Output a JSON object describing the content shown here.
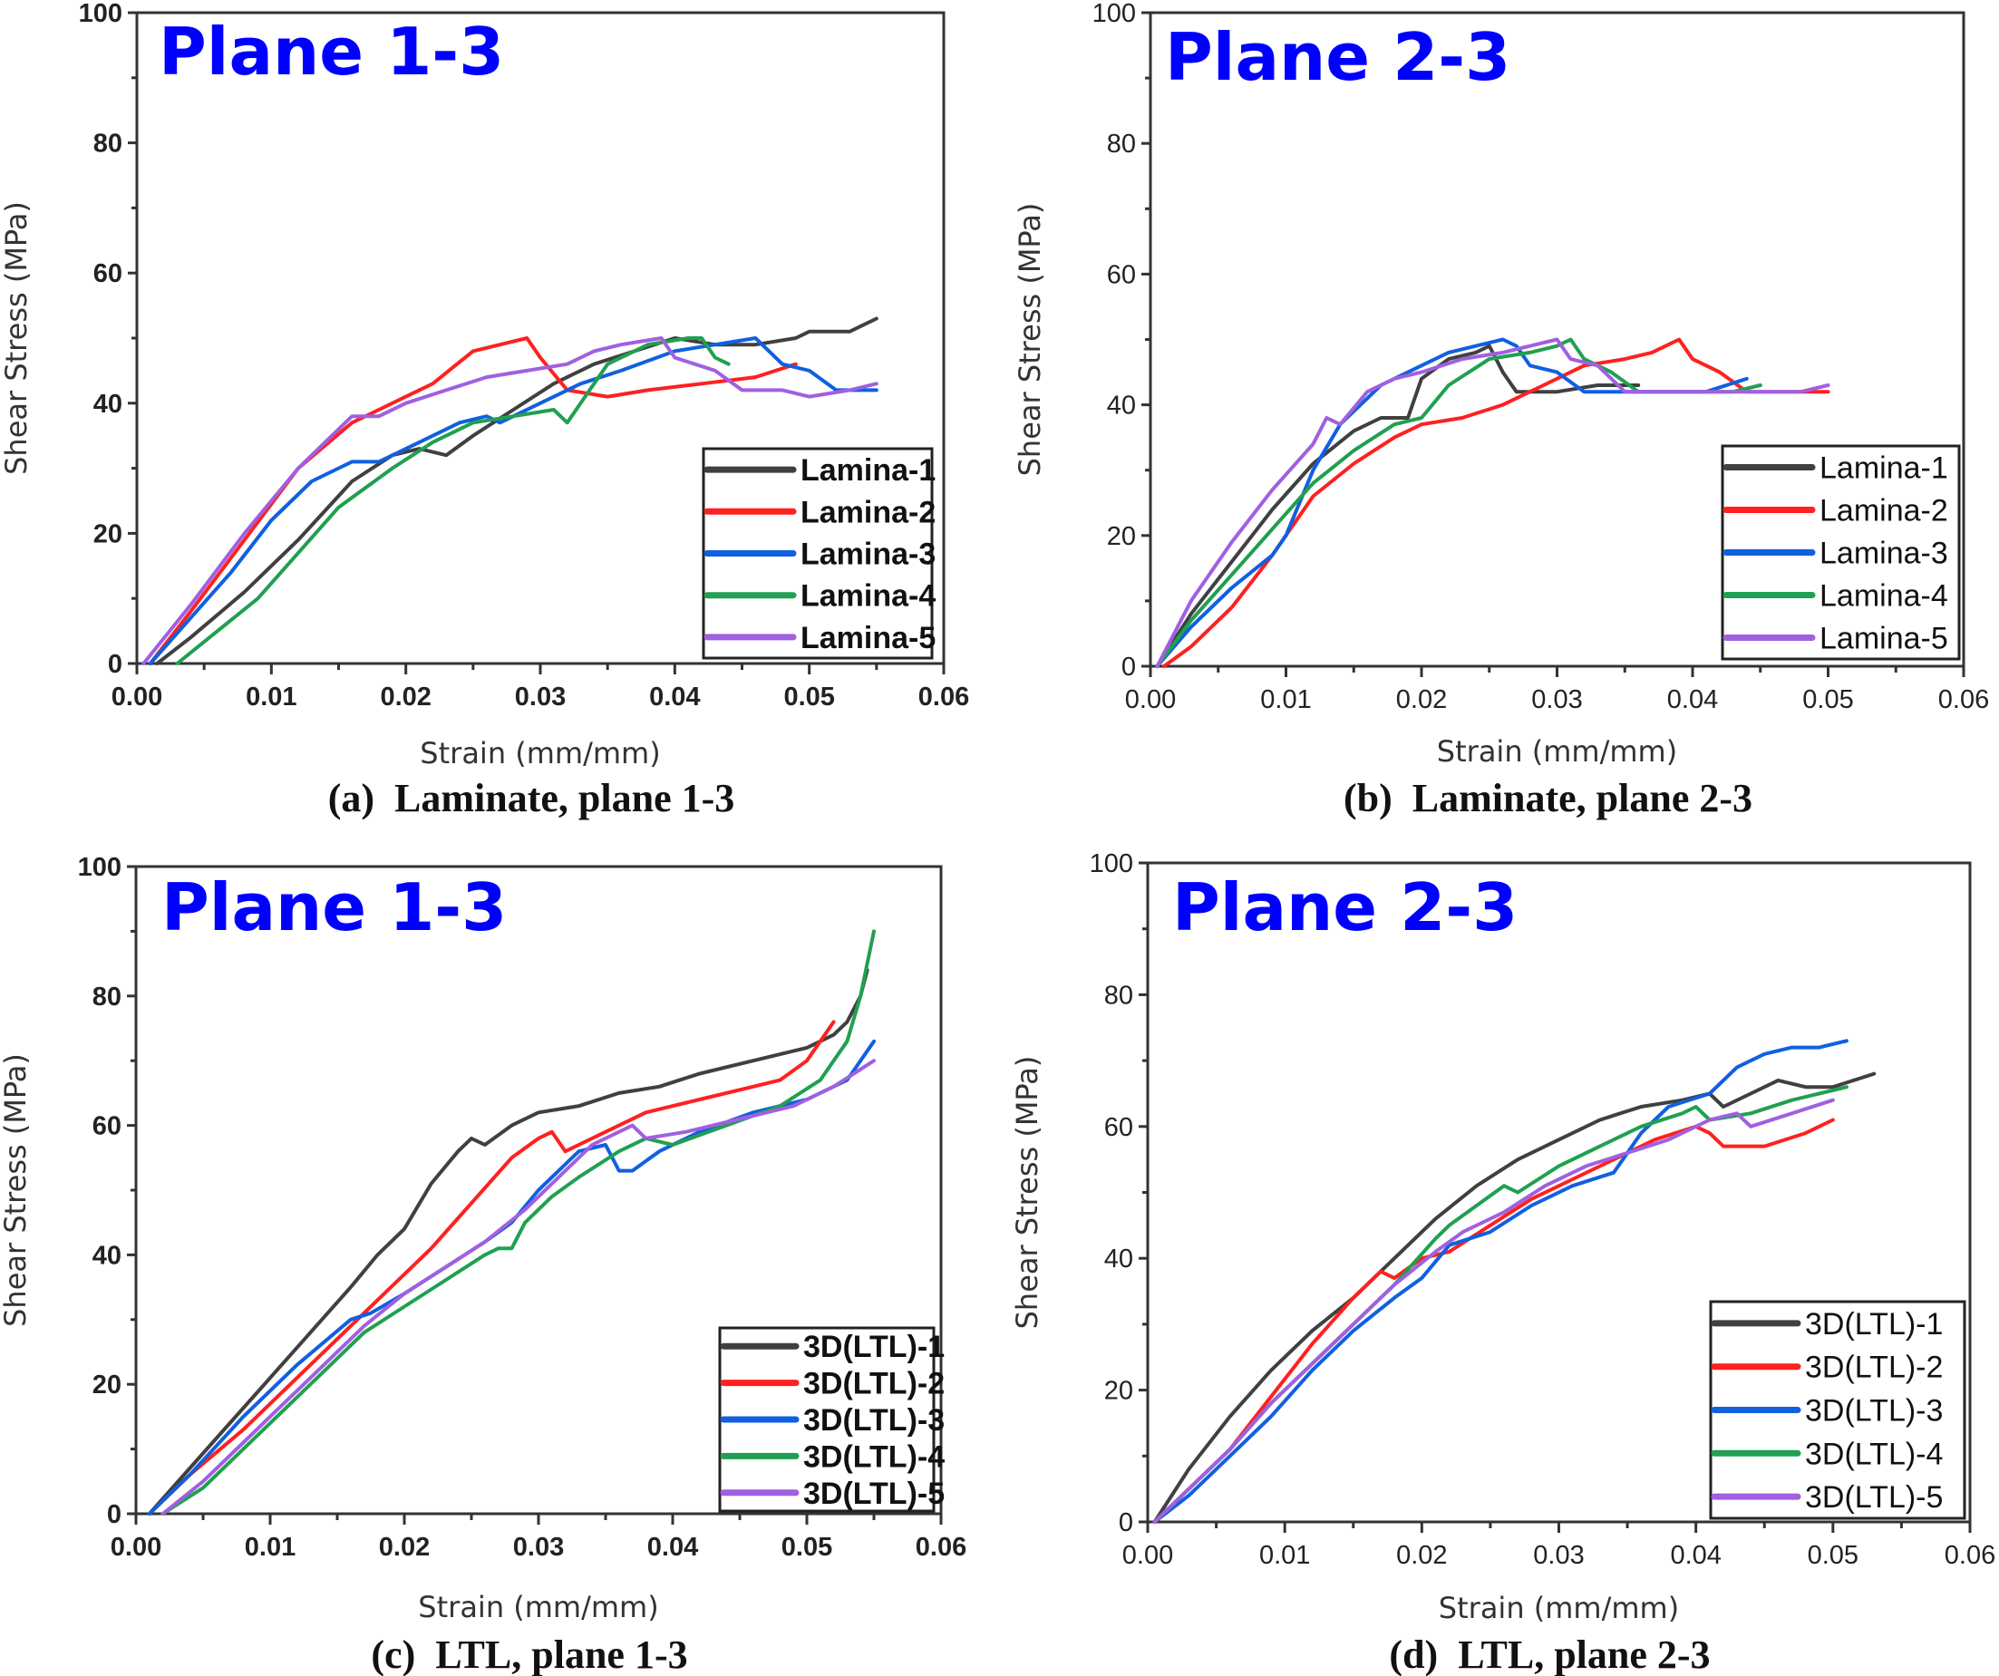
{
  "chart_data": [
    {
      "id": "a",
      "type": "line",
      "title": "Plane 1-3",
      "caption": "(a)  Laminate, plane 1-3",
      "xlabel": "Strain (mm/mm)",
      "ylabel": "Shear Stress (MPa)",
      "xlim": [
        0,
        0.06
      ],
      "ylim": [
        0,
        100
      ],
      "xticks": [
        "0.00",
        "0.01",
        "0.02",
        "0.03",
        "0.04",
        "0.05",
        "0.06"
      ],
      "yticks": [
        "0",
        "20",
        "40",
        "60",
        "80",
        "100"
      ],
      "grid": false,
      "legend_position": "bottom-right",
      "bold_labels": true,
      "series": [
        {
          "name": "Lamina-1",
          "color": "#404040",
          "x": [
            0.0015,
            0.004,
            0.008,
            0.012,
            0.016,
            0.019,
            0.021,
            0.023,
            0.025,
            0.028,
            0.031,
            0.034,
            0.037,
            0.04,
            0.043,
            0.046,
            0.049,
            0.05,
            0.052,
            0.053,
            0.055
          ],
          "y": [
            0,
            4,
            11,
            19,
            28,
            32,
            33,
            32,
            35,
            39,
            43,
            46,
            48,
            50,
            49,
            49,
            50,
            51,
            51,
            51,
            53
          ]
        },
        {
          "name": "Lamina-2",
          "color": "#ff2020",
          "x": [
            0.001,
            0.004,
            0.008,
            0.012,
            0.016,
            0.018,
            0.02,
            0.022,
            0.025,
            0.027,
            0.029,
            0.03,
            0.032,
            0.035,
            0.038,
            0.042,
            0.046,
            0.049
          ],
          "y": [
            0,
            8,
            19,
            30,
            37,
            39,
            41,
            43,
            48,
            49,
            50,
            47,
            42,
            41,
            42,
            43,
            44,
            46
          ]
        },
        {
          "name": "Lamina-3",
          "color": "#1060e0",
          "x": [
            0.001,
            0.004,
            0.007,
            0.01,
            0.013,
            0.016,
            0.018,
            0.021,
            0.024,
            0.026,
            0.027,
            0.03,
            0.033,
            0.036,
            0.04,
            0.043,
            0.046,
            0.048,
            0.05,
            0.052,
            0.055
          ],
          "y": [
            0,
            7,
            14,
            22,
            28,
            31,
            31,
            34,
            37,
            38,
            37,
            40,
            43,
            45,
            48,
            49,
            50,
            46,
            45,
            42,
            42
          ]
        },
        {
          "name": "Lamina-4",
          "color": "#20a050",
          "x": [
            0.003,
            0.006,
            0.009,
            0.012,
            0.015,
            0.019,
            0.022,
            0.025,
            0.028,
            0.031,
            0.032,
            0.033,
            0.035,
            0.038,
            0.041,
            0.042,
            0.043,
            0.044
          ],
          "y": [
            0,
            5,
            10,
            17,
            24,
            30,
            34,
            37,
            38,
            39,
            37,
            40,
            46,
            49,
            50,
            50,
            47,
            46
          ]
        },
        {
          "name": "Lamina-5",
          "color": "#a060e0",
          "x": [
            0.0005,
            0.004,
            0.008,
            0.012,
            0.016,
            0.018,
            0.02,
            0.023,
            0.026,
            0.029,
            0.032,
            0.034,
            0.036,
            0.039,
            0.04,
            0.043,
            0.045,
            0.048,
            0.05,
            0.053,
            0.055
          ],
          "y": [
            0,
            9,
            20,
            30,
            38,
            38,
            40,
            42,
            44,
            45,
            46,
            48,
            49,
            50,
            47,
            45,
            42,
            42,
            41,
            42,
            43
          ]
        }
      ]
    },
    {
      "id": "b",
      "type": "line",
      "title": "Plane 2-3",
      "caption": "(b)  Laminate, plane 2-3",
      "xlabel": "Strain (mm/mm)",
      "ylabel": "Shear Stress (MPa)",
      "xlim": [
        0,
        0.06
      ],
      "ylim": [
        0,
        100
      ],
      "xticks": [
        "0.00",
        "0.01",
        "0.02",
        "0.03",
        "0.04",
        "0.05",
        "0.06"
      ],
      "yticks": [
        "0",
        "20",
        "40",
        "60",
        "80",
        "100"
      ],
      "grid": false,
      "legend_position": "bottom-right",
      "bold_labels": false,
      "series": [
        {
          "name": "Lamina-1",
          "color": "#404040",
          "x": [
            0.0005,
            0.003,
            0.006,
            0.009,
            0.012,
            0.015,
            0.017,
            0.019,
            0.02,
            0.022,
            0.024,
            0.025,
            0.026,
            0.027,
            0.03,
            0.033,
            0.035,
            0.036
          ],
          "y": [
            0,
            8,
            16,
            24,
            31,
            36,
            38,
            38,
            44,
            47,
            48,
            49,
            45,
            42,
            42,
            43,
            43,
            43
          ]
        },
        {
          "name": "Lamina-2",
          "color": "#ff2020",
          "x": [
            0.001,
            0.003,
            0.006,
            0.009,
            0.012,
            0.015,
            0.018,
            0.02,
            0.023,
            0.026,
            0.029,
            0.032,
            0.035,
            0.037,
            0.039,
            0.04,
            0.042,
            0.044,
            0.046,
            0.048,
            0.05
          ],
          "y": [
            0,
            3,
            9,
            17,
            26,
            31,
            35,
            37,
            38,
            40,
            43,
            46,
            47,
            48,
            50,
            47,
            45,
            42,
            42,
            42,
            42
          ]
        },
        {
          "name": "Lamina-3",
          "color": "#1060e0",
          "x": [
            0.0005,
            0.003,
            0.006,
            0.009,
            0.01,
            0.012,
            0.014,
            0.017,
            0.02,
            0.022,
            0.024,
            0.026,
            0.027,
            0.028,
            0.03,
            0.032,
            0.034,
            0.038,
            0.041,
            0.044
          ],
          "y": [
            0,
            6,
            12,
            17,
            20,
            30,
            37,
            43,
            46,
            48,
            49,
            50,
            49,
            46,
            45,
            42,
            42,
            42,
            42,
            44
          ]
        },
        {
          "name": "Lamina-4",
          "color": "#20a050",
          "x": [
            0.0005,
            0.003,
            0.006,
            0.009,
            0.012,
            0.015,
            0.018,
            0.02,
            0.022,
            0.025,
            0.028,
            0.03,
            0.031,
            0.032,
            0.034,
            0.036,
            0.04,
            0.043,
            0.045
          ],
          "y": [
            0,
            7,
            14,
            21,
            28,
            33,
            37,
            38,
            43,
            47,
            48,
            49,
            50,
            47,
            45,
            42,
            42,
            42,
            43
          ]
        },
        {
          "name": "Lamina-5",
          "color": "#a060e0",
          "x": [
            0.0005,
            0.003,
            0.006,
            0.009,
            0.012,
            0.013,
            0.014,
            0.016,
            0.018,
            0.02,
            0.023,
            0.026,
            0.028,
            0.03,
            0.031,
            0.033,
            0.035,
            0.038,
            0.042,
            0.046,
            0.048,
            0.05
          ],
          "y": [
            0,
            10,
            19,
            27,
            34,
            38,
            37,
            42,
            44,
            45,
            47,
            48,
            49,
            50,
            47,
            46,
            42,
            42,
            42,
            42,
            42,
            43
          ]
        }
      ]
    },
    {
      "id": "c",
      "type": "line",
      "title": "Plane 1-3",
      "caption": "(c)  LTL, plane 1-3",
      "xlabel": "Strain (mm/mm)",
      "ylabel": "Shear Stress (MPa)",
      "xlim": [
        0,
        0.06
      ],
      "ylim": [
        0,
        100
      ],
      "xticks": [
        "0.00",
        "0.01",
        "0.02",
        "0.03",
        "0.04",
        "0.05",
        "0.06"
      ],
      "yticks": [
        "0",
        "20",
        "40",
        "60",
        "80",
        "100"
      ],
      "grid": false,
      "legend_position": "bottom-right",
      "bold_labels": true,
      "series": [
        {
          "name": "3D(LTL)-1",
          "color": "#404040",
          "x": [
            0.001,
            0.004,
            0.007,
            0.01,
            0.013,
            0.016,
            0.018,
            0.02,
            0.022,
            0.024,
            0.025,
            0.026,
            0.028,
            0.03,
            0.033,
            0.036,
            0.039,
            0.042,
            0.046,
            0.05,
            0.052,
            0.053,
            0.054,
            0.0545
          ],
          "y": [
            0,
            7,
            14,
            21,
            28,
            35,
            40,
            44,
            51,
            56,
            58,
            57,
            60,
            62,
            63,
            65,
            66,
            68,
            70,
            72,
            74,
            76,
            80,
            84
          ]
        },
        {
          "name": "3D(LTL)-2",
          "color": "#ff2020",
          "x": [
            0.001,
            0.004,
            0.008,
            0.012,
            0.016,
            0.019,
            0.022,
            0.025,
            0.028,
            0.03,
            0.031,
            0.032,
            0.035,
            0.038,
            0.042,
            0.046,
            0.048,
            0.05,
            0.052
          ],
          "y": [
            0,
            6,
            13,
            21,
            29,
            35,
            41,
            48,
            55,
            58,
            59,
            56,
            59,
            62,
            64,
            66,
            67,
            70,
            76
          ]
        },
        {
          "name": "3D(LTL)-3",
          "color": "#1060e0",
          "x": [
            0.001,
            0.004,
            0.008,
            0.012,
            0.016,
            0.0175,
            0.02,
            0.023,
            0.026,
            0.028,
            0.03,
            0.033,
            0.035,
            0.036,
            0.037,
            0.039,
            0.042,
            0.046,
            0.05,
            0.053,
            0.055
          ],
          "y": [
            0,
            6,
            15,
            23,
            30,
            31,
            34,
            38,
            42,
            45,
            50,
            56,
            57,
            53,
            53,
            56,
            59,
            62,
            64,
            67,
            73
          ]
        },
        {
          "name": "3D(LTL)-4",
          "color": "#20a050",
          "x": [
            0.002,
            0.005,
            0.008,
            0.011,
            0.014,
            0.017,
            0.02,
            0.023,
            0.026,
            0.027,
            0.028,
            0.029,
            0.031,
            0.033,
            0.036,
            0.038,
            0.04,
            0.044,
            0.048,
            0.051,
            0.053,
            0.054,
            0.055
          ],
          "y": [
            0,
            4,
            10,
            16,
            22,
            28,
            32,
            36,
            40,
            41,
            41,
            45,
            49,
            52,
            56,
            58,
            57,
            60,
            63,
            67,
            73,
            80,
            90
          ]
        },
        {
          "name": "3D(LTL)-5",
          "color": "#a060e0",
          "x": [
            0.002,
            0.005,
            0.008,
            0.011,
            0.014,
            0.017,
            0.02,
            0.023,
            0.026,
            0.029,
            0.032,
            0.034,
            0.036,
            0.037,
            0.038,
            0.041,
            0.045,
            0.049,
            0.052,
            0.055
          ],
          "y": [
            0,
            5,
            11,
            17,
            23,
            29,
            34,
            38,
            42,
            47,
            53,
            57,
            59,
            60,
            58,
            59,
            61,
            63,
            66,
            70
          ]
        }
      ]
    },
    {
      "id": "d",
      "type": "line",
      "title": "Plane 2-3",
      "caption": "(d)  LTL, plane 2-3",
      "xlabel": "Strain (mm/mm)",
      "ylabel": "Shear Stress (MPa)",
      "xlim": [
        0,
        0.06
      ],
      "ylim": [
        0,
        100
      ],
      "xticks": [
        "0.00",
        "0.01",
        "0.02",
        "0.03",
        "0.04",
        "0.05",
        "0.06"
      ],
      "yticks": [
        "0",
        "20",
        "40",
        "60",
        "80",
        "100"
      ],
      "grid": false,
      "legend_position": "bottom-right",
      "bold_labels": false,
      "series": [
        {
          "name": "3D(LTL)-1",
          "color": "#404040",
          "x": [
            0.0005,
            0.003,
            0.006,
            0.009,
            0.012,
            0.015,
            0.018,
            0.021,
            0.024,
            0.027,
            0.03,
            0.033,
            0.036,
            0.039,
            0.041,
            0.042,
            0.044,
            0.046,
            0.048,
            0.05,
            0.053
          ],
          "y": [
            0,
            8,
            16,
            23,
            29,
            34,
            40,
            46,
            51,
            55,
            58,
            61,
            63,
            64,
            65,
            63,
            65,
            67,
            66,
            66,
            68
          ]
        },
        {
          "name": "3D(LTL)-2",
          "color": "#ff2020",
          "x": [
            0.0005,
            0.003,
            0.006,
            0.009,
            0.012,
            0.015,
            0.017,
            0.018,
            0.02,
            0.022,
            0.025,
            0.028,
            0.031,
            0.034,
            0.037,
            0.04,
            0.041,
            0.042,
            0.045,
            0.048,
            0.05
          ],
          "y": [
            0,
            5,
            11,
            19,
            27,
            34,
            38,
            37,
            40,
            41,
            45,
            49,
            52,
            55,
            58,
            60,
            59,
            57,
            57,
            59,
            61
          ]
        },
        {
          "name": "3D(LTL)-3",
          "color": "#1060e0",
          "x": [
            0.0005,
            0.003,
            0.006,
            0.009,
            0.012,
            0.015,
            0.018,
            0.02,
            0.022,
            0.025,
            0.028,
            0.031,
            0.034,
            0.036,
            0.038,
            0.041,
            0.043,
            0.045,
            0.047,
            0.049,
            0.051
          ],
          "y": [
            0,
            4,
            10,
            16,
            23,
            29,
            34,
            37,
            42,
            44,
            48,
            51,
            53,
            59,
            63,
            65,
            69,
            71,
            72,
            72,
            73
          ]
        },
        {
          "name": "3D(LTL)-4",
          "color": "#20a050",
          "x": [
            0.0005,
            0.003,
            0.006,
            0.009,
            0.012,
            0.015,
            0.018,
            0.021,
            0.022,
            0.024,
            0.026,
            0.027,
            0.03,
            0.033,
            0.036,
            0.039,
            0.04,
            0.041,
            0.044,
            0.047,
            0.051
          ],
          "y": [
            0,
            5,
            11,
            18,
            24,
            30,
            36,
            43,
            45,
            48,
            51,
            50,
            54,
            57,
            60,
            62,
            63,
            61,
            62,
            64,
            66
          ]
        },
        {
          "name": "3D(LTL)-5",
          "color": "#a060e0",
          "x": [
            0.0005,
            0.003,
            0.006,
            0.009,
            0.012,
            0.015,
            0.018,
            0.021,
            0.023,
            0.026,
            0.029,
            0.032,
            0.035,
            0.038,
            0.041,
            0.043,
            0.044,
            0.047,
            0.05
          ],
          "y": [
            0,
            5,
            11,
            18,
            24,
            30,
            36,
            41,
            44,
            47,
            51,
            54,
            56,
            58,
            61,
            62,
            60,
            62,
            64
          ]
        }
      ]
    }
  ]
}
